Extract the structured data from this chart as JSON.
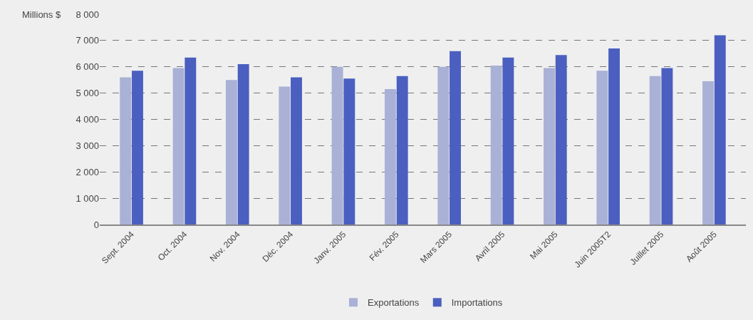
{
  "chart_data": {
    "type": "bar",
    "ylabel": "Millions $",
    "categories": [
      "Sept. 2004",
      "Oct. 2004",
      "Nov. 2004",
      "Déc. 2004",
      "Janv. 2005",
      "Fév. 2005",
      "Mars 2005",
      "Avril 2005",
      "Mai 2005",
      "Juin 2005T2",
      "Juillet 2005",
      "Août 2005"
    ],
    "series": [
      {
        "name": "Exportations",
        "color": "#a9b1d6",
        "values": [
          5600,
          5950,
          5500,
          5250,
          6000,
          5150,
          6000,
          6050,
          5950,
          5850,
          5650,
          5450
        ]
      },
      {
        "name": "Importations",
        "color": "#4a5fbf",
        "values": [
          5850,
          6350,
          6100,
          5600,
          5550,
          5650,
          6600,
          6350,
          6450,
          6700,
          5950,
          7200
        ]
      }
    ],
    "ylim": [
      0,
      8000
    ],
    "yticks": [
      0,
      {
        "value": 1000,
        "label": "1 000"
      },
      {
        "value": 2000,
        "label": "2 000"
      },
      {
        "value": 3000,
        "label": "3 000"
      },
      {
        "value": 4000,
        "label": "4 000"
      },
      {
        "value": 5000,
        "label": "5 000"
      },
      {
        "value": 6000,
        "label": "6 000"
      },
      {
        "value": 7000,
        "label": "7 000"
      },
      {
        "value": 8000,
        "label": "8 000"
      }
    ],
    "grid": "y",
    "legend": "bottom"
  }
}
